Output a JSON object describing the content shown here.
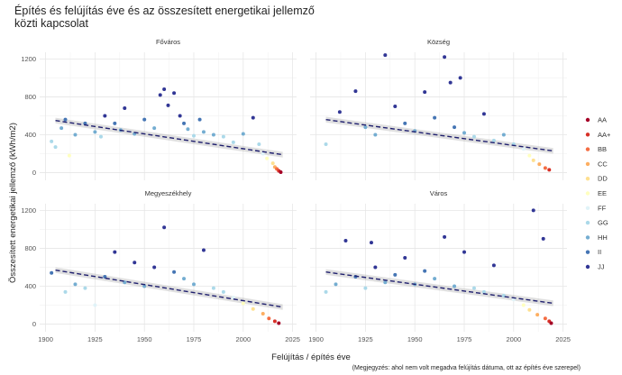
{
  "chart_data": {
    "type": "scatter",
    "title_lines": [
      "Építés és felújítás éve és az összesített energetikai jellemző",
      "közti kapcsolat"
    ],
    "xlabel": "Felújítás / építés  éve",
    "ylabel": "Összesített energetikai jellemző (kWh/m2)",
    "note": "(Megjegyzés: ahol nem volt megadva felújítás dátuma, ott az építés éve szerepel)",
    "xlim": [
      1897,
      2027
    ],
    "ylim": [
      -80,
      1270
    ],
    "xticks": [
      1900,
      1925,
      1950,
      1975,
      2000,
      2025
    ],
    "yticks": [
      0,
      400,
      800,
      1200
    ],
    "grid": true,
    "legend_position": "right",
    "categories": [
      {
        "name": "AA",
        "color": "#a50026"
      },
      {
        "name": "AA+",
        "color": "#d73027"
      },
      {
        "name": "BB",
        "color": "#f46d43"
      },
      {
        "name": "CC",
        "color": "#fdae61"
      },
      {
        "name": "DD",
        "color": "#fee090"
      },
      {
        "name": "EE",
        "color": "#ffffbf"
      },
      {
        "name": "FF",
        "color": "#e0f3f8"
      },
      {
        "name": "GG",
        "color": "#abd9e9"
      },
      {
        "name": "HH",
        "color": "#74add1"
      },
      {
        "name": "II",
        "color": "#4575b4"
      },
      {
        "name": "JJ",
        "color": "#313695"
      }
    ],
    "facets": [
      {
        "name": "Főváros",
        "trend": [
          [
            1905,
            550
          ],
          [
            2020,
            190
          ]
        ],
        "points": [
          {
            "x": 1903,
            "y": 330,
            "c": "GG"
          },
          {
            "x": 1905,
            "y": 270,
            "c": "GG"
          },
          {
            "x": 1908,
            "y": 470,
            "c": "HH"
          },
          {
            "x": 1910,
            "y": 560,
            "c": "II"
          },
          {
            "x": 1912,
            "y": 180,
            "c": "EE"
          },
          {
            "x": 1915,
            "y": 400,
            "c": "HH"
          },
          {
            "x": 1920,
            "y": 520,
            "c": "II"
          },
          {
            "x": 1925,
            "y": 430,
            "c": "HH"
          },
          {
            "x": 1928,
            "y": 380,
            "c": "GG"
          },
          {
            "x": 1930,
            "y": 600,
            "c": "JJ"
          },
          {
            "x": 1935,
            "y": 520,
            "c": "II"
          },
          {
            "x": 1938,
            "y": 450,
            "c": "HH"
          },
          {
            "x": 1940,
            "y": 680,
            "c": "JJ"
          },
          {
            "x": 1945,
            "y": 410,
            "c": "HH"
          },
          {
            "x": 1950,
            "y": 560,
            "c": "II"
          },
          {
            "x": 1955,
            "y": 470,
            "c": "HH"
          },
          {
            "x": 1958,
            "y": 820,
            "c": "JJ"
          },
          {
            "x": 1960,
            "y": 880,
            "c": "JJ"
          },
          {
            "x": 1962,
            "y": 710,
            "c": "JJ"
          },
          {
            "x": 1965,
            "y": 840,
            "c": "JJ"
          },
          {
            "x": 1968,
            "y": 600,
            "c": "JJ"
          },
          {
            "x": 1970,
            "y": 520,
            "c": "II"
          },
          {
            "x": 1972,
            "y": 460,
            "c": "HH"
          },
          {
            "x": 1975,
            "y": 390,
            "c": "GG"
          },
          {
            "x": 1978,
            "y": 560,
            "c": "II"
          },
          {
            "x": 1980,
            "y": 430,
            "c": "HH"
          },
          {
            "x": 1985,
            "y": 400,
            "c": "HH"
          },
          {
            "x": 1990,
            "y": 380,
            "c": "GG"
          },
          {
            "x": 1995,
            "y": 320,
            "c": "GG"
          },
          {
            "x": 2000,
            "y": 410,
            "c": "HH"
          },
          {
            "x": 2005,
            "y": 580,
            "c": "JJ"
          },
          {
            "x": 2008,
            "y": 300,
            "c": "GG"
          },
          {
            "x": 2010,
            "y": 200,
            "c": "FF"
          },
          {
            "x": 2012,
            "y": 150,
            "c": "EE"
          },
          {
            "x": 2015,
            "y": 100,
            "c": "DD"
          },
          {
            "x": 2016,
            "y": 60,
            "c": "CC"
          },
          {
            "x": 2017,
            "y": 40,
            "c": "BB"
          },
          {
            "x": 2018,
            "y": 20,
            "c": "AA+"
          },
          {
            "x": 2019,
            "y": 5,
            "c": "AA"
          }
        ]
      },
      {
        "name": "Község",
        "trend": [
          [
            1905,
            560
          ],
          [
            2020,
            230
          ]
        ],
        "points": [
          {
            "x": 1905,
            "y": 300,
            "c": "GG"
          },
          {
            "x": 1912,
            "y": 640,
            "c": "JJ"
          },
          {
            "x": 1920,
            "y": 860,
            "c": "JJ"
          },
          {
            "x": 1925,
            "y": 480,
            "c": "HH"
          },
          {
            "x": 1930,
            "y": 400,
            "c": "HH"
          },
          {
            "x": 1935,
            "y": 1240,
            "c": "JJ"
          },
          {
            "x": 1940,
            "y": 700,
            "c": "JJ"
          },
          {
            "x": 1945,
            "y": 520,
            "c": "II"
          },
          {
            "x": 1950,
            "y": 440,
            "c": "HH"
          },
          {
            "x": 1955,
            "y": 850,
            "c": "JJ"
          },
          {
            "x": 1960,
            "y": 580,
            "c": "II"
          },
          {
            "x": 1965,
            "y": 1220,
            "c": "JJ"
          },
          {
            "x": 1968,
            "y": 950,
            "c": "JJ"
          },
          {
            "x": 1970,
            "y": 480,
            "c": "II"
          },
          {
            "x": 1973,
            "y": 1000,
            "c": "JJ"
          },
          {
            "x": 1975,
            "y": 420,
            "c": "HH"
          },
          {
            "x": 1980,
            "y": 380,
            "c": "GG"
          },
          {
            "x": 1985,
            "y": 620,
            "c": "JJ"
          },
          {
            "x": 1990,
            "y": 340,
            "c": "GG"
          },
          {
            "x": 1995,
            "y": 400,
            "c": "HH"
          },
          {
            "x": 2000,
            "y": 300,
            "c": "GG"
          },
          {
            "x": 2005,
            "y": 250,
            "c": "FF"
          },
          {
            "x": 2008,
            "y": 180,
            "c": "EE"
          },
          {
            "x": 2010,
            "y": 130,
            "c": "DD"
          },
          {
            "x": 2013,
            "y": 90,
            "c": "CC"
          },
          {
            "x": 2016,
            "y": 50,
            "c": "BB"
          },
          {
            "x": 2018,
            "y": 30,
            "c": "AA+"
          }
        ]
      },
      {
        "name": "Megyeszékhely",
        "trend": [
          [
            1905,
            570
          ],
          [
            2020,
            180
          ]
        ],
        "points": [
          {
            "x": 1903,
            "y": 540,
            "c": "II"
          },
          {
            "x": 1910,
            "y": 340,
            "c": "GG"
          },
          {
            "x": 1915,
            "y": 420,
            "c": "HH"
          },
          {
            "x": 1920,
            "y": 380,
            "c": "GG"
          },
          {
            "x": 1925,
            "y": 200,
            "c": "FF"
          },
          {
            "x": 1930,
            "y": 500,
            "c": "II"
          },
          {
            "x": 1935,
            "y": 760,
            "c": "JJ"
          },
          {
            "x": 1940,
            "y": 440,
            "c": "HH"
          },
          {
            "x": 1945,
            "y": 650,
            "c": "JJ"
          },
          {
            "x": 1950,
            "y": 400,
            "c": "HH"
          },
          {
            "x": 1955,
            "y": 600,
            "c": "JJ"
          },
          {
            "x": 1960,
            "y": 1020,
            "c": "JJ"
          },
          {
            "x": 1965,
            "y": 550,
            "c": "II"
          },
          {
            "x": 1970,
            "y": 480,
            "c": "HH"
          },
          {
            "x": 1975,
            "y": 420,
            "c": "HH"
          },
          {
            "x": 1980,
            "y": 780,
            "c": "JJ"
          },
          {
            "x": 1985,
            "y": 380,
            "c": "GG"
          },
          {
            "x": 1990,
            "y": 340,
            "c": "GG"
          },
          {
            "x": 1995,
            "y": 280,
            "c": "FF"
          },
          {
            "x": 2000,
            "y": 220,
            "c": "EE"
          },
          {
            "x": 2005,
            "y": 160,
            "c": "DD"
          },
          {
            "x": 2010,
            "y": 110,
            "c": "CC"
          },
          {
            "x": 2013,
            "y": 60,
            "c": "BB"
          },
          {
            "x": 2016,
            "y": 30,
            "c": "AA+"
          },
          {
            "x": 2018,
            "y": 10,
            "c": "AA"
          }
        ]
      },
      {
        "name": "Város",
        "trend": [
          [
            1905,
            550
          ],
          [
            2020,
            220
          ]
        ],
        "points": [
          {
            "x": 1905,
            "y": 340,
            "c": "GG"
          },
          {
            "x": 1910,
            "y": 420,
            "c": "HH"
          },
          {
            "x": 1915,
            "y": 880,
            "c": "JJ"
          },
          {
            "x": 1920,
            "y": 500,
            "c": "II"
          },
          {
            "x": 1925,
            "y": 380,
            "c": "GG"
          },
          {
            "x": 1928,
            "y": 860,
            "c": "JJ"
          },
          {
            "x": 1930,
            "y": 600,
            "c": "JJ"
          },
          {
            "x": 1935,
            "y": 440,
            "c": "HH"
          },
          {
            "x": 1940,
            "y": 520,
            "c": "II"
          },
          {
            "x": 1945,
            "y": 700,
            "c": "JJ"
          },
          {
            "x": 1950,
            "y": 420,
            "c": "HH"
          },
          {
            "x": 1955,
            "y": 560,
            "c": "II"
          },
          {
            "x": 1960,
            "y": 480,
            "c": "HH"
          },
          {
            "x": 1965,
            "y": 920,
            "c": "JJ"
          },
          {
            "x": 1970,
            "y": 400,
            "c": "HH"
          },
          {
            "x": 1975,
            "y": 760,
            "c": "JJ"
          },
          {
            "x": 1980,
            "y": 380,
            "c": "GG"
          },
          {
            "x": 1985,
            "y": 340,
            "c": "GG"
          },
          {
            "x": 1990,
            "y": 620,
            "c": "JJ"
          },
          {
            "x": 1995,
            "y": 300,
            "c": "GG"
          },
          {
            "x": 2000,
            "y": 260,
            "c": "FF"
          },
          {
            "x": 2005,
            "y": 200,
            "c": "EE"
          },
          {
            "x": 2008,
            "y": 150,
            "c": "DD"
          },
          {
            "x": 2010,
            "y": 1200,
            "c": "JJ"
          },
          {
            "x": 2012,
            "y": 100,
            "c": "CC"
          },
          {
            "x": 2015,
            "y": 900,
            "c": "JJ"
          },
          {
            "x": 2016,
            "y": 60,
            "c": "BB"
          },
          {
            "x": 2018,
            "y": 30,
            "c": "AA+"
          },
          {
            "x": 2019,
            "y": 10,
            "c": "AA"
          }
        ]
      }
    ]
  }
}
